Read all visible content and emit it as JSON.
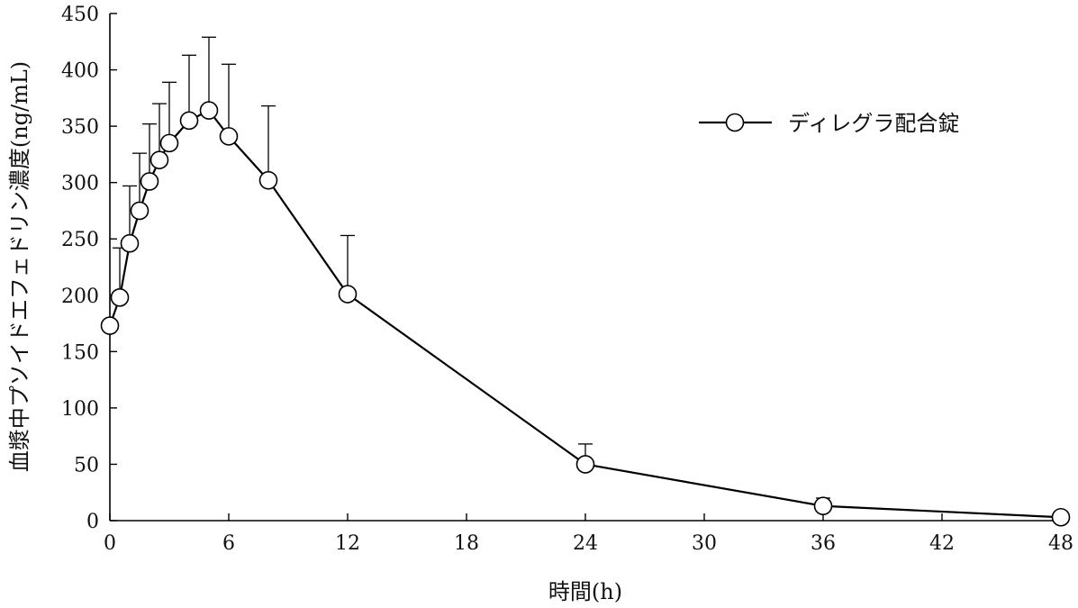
{
  "chart_data": {
    "type": "line",
    "title": "",
    "xlabel": "時間(h)",
    "ylabel": "血漿中プソイドエフェドリン濃度(ng/mL)",
    "xlim": [
      0,
      48
    ],
    "ylim": [
      0,
      450
    ],
    "xticks": [
      0,
      6,
      12,
      18,
      24,
      30,
      36,
      42,
      48
    ],
    "yticks": [
      0,
      50,
      100,
      150,
      200,
      250,
      300,
      350,
      400,
      450
    ],
    "grid": false,
    "legend_position": "top-right",
    "series": [
      {
        "name": "ディレグラ配合錠",
        "marker": "open-circle",
        "color": "#000000",
        "x": [
          0,
          0.5,
          1,
          1.5,
          2,
          2.5,
          3,
          4,
          5,
          6,
          8,
          12,
          24,
          36,
          48
        ],
        "y": [
          173,
          198,
          246,
          275,
          301,
          320,
          335,
          355,
          364,
          341,
          302,
          201,
          50,
          13,
          3
        ],
        "error_upper": [
          null,
          242,
          297,
          326,
          352,
          370,
          389,
          413,
          429,
          405,
          368,
          253,
          68,
          20,
          null
        ]
      }
    ]
  }
}
